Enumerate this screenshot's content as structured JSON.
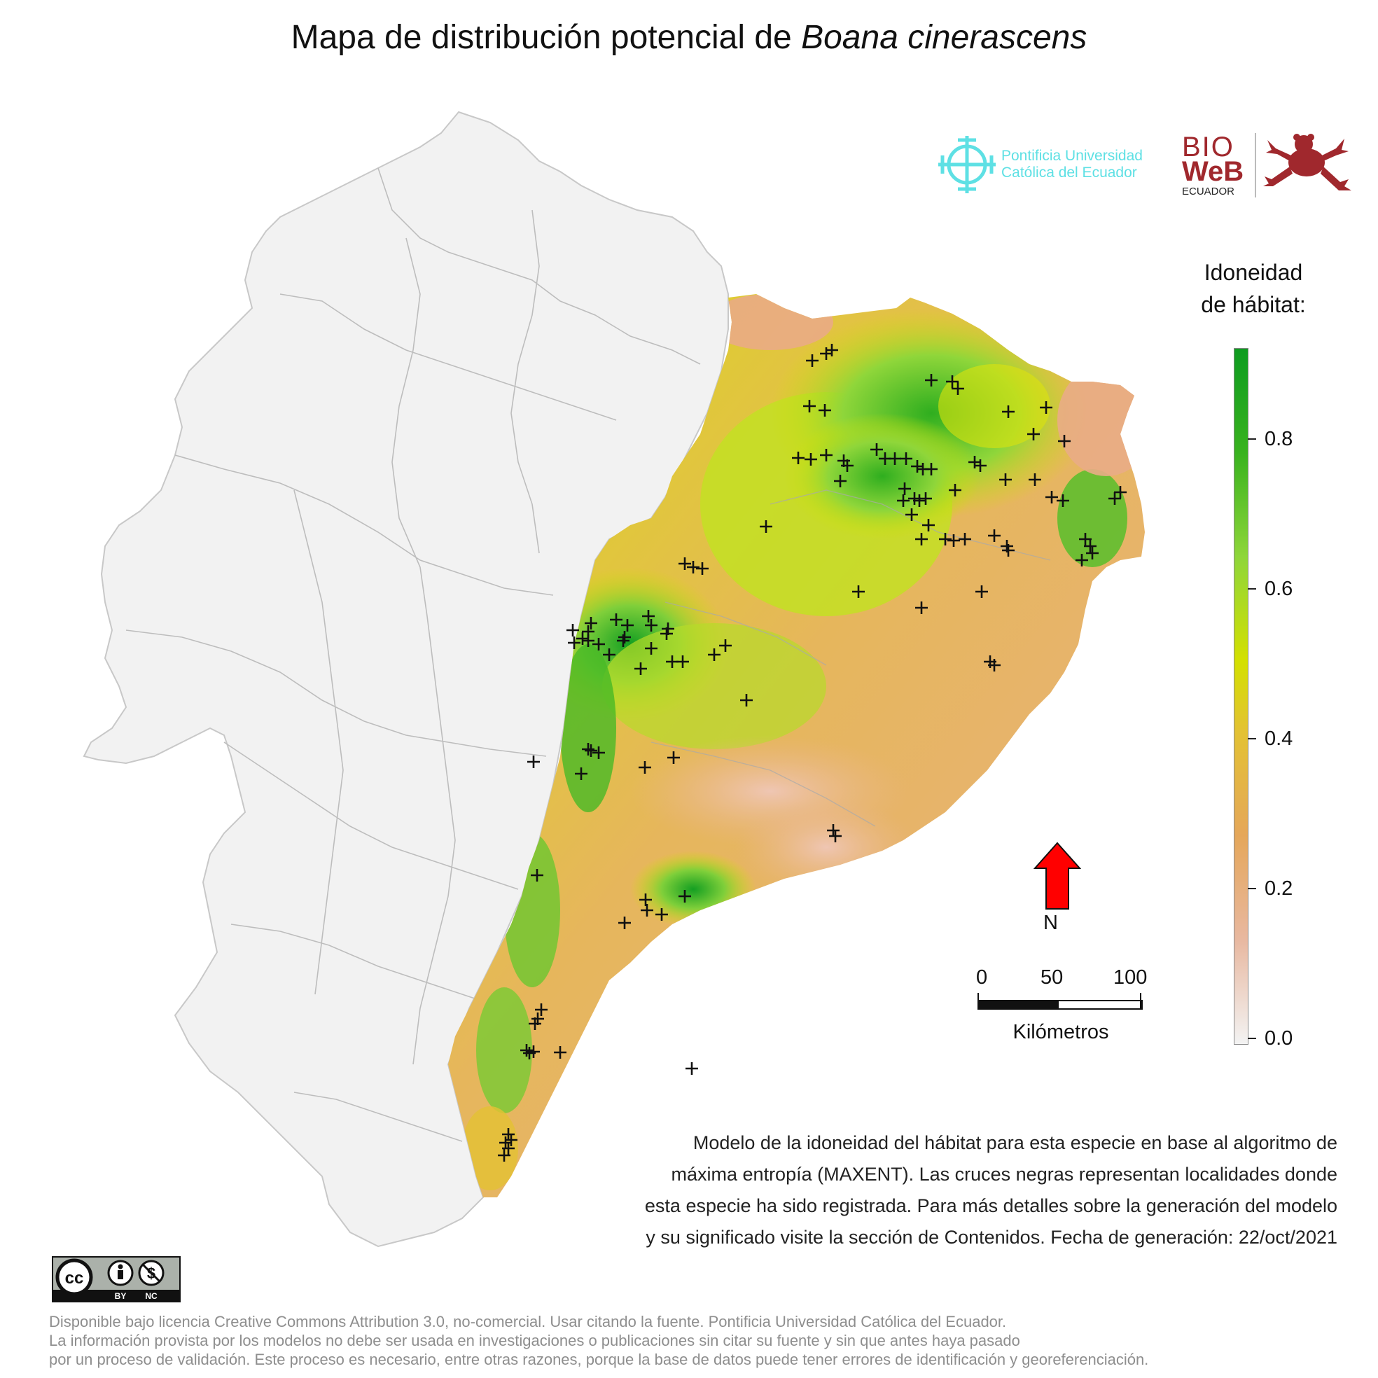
{
  "title": {
    "prefix": "Mapa de distribución potencial de ",
    "species": "Boana cinerascens"
  },
  "logos": {
    "puce_line1": "Pontificia Universidad",
    "puce_line2": "Católica del Ecuador",
    "bioweb_line1": "BIO",
    "bioweb_line2": "WeB",
    "bioweb_line3": "ECUADOR",
    "puce_color": "#5ee0e4",
    "bioweb_color": "#a0282d"
  },
  "legend": {
    "title_line1": "Idoneidad",
    "title_line2": "de hábitat:",
    "ticks": [
      "0.8",
      "0.6",
      "0.4",
      "0.2",
      "0.0"
    ],
    "low_color": "#f3f3f3",
    "mid_color": "#e3c233",
    "high_color": "#0e9c20"
  },
  "north": {
    "label": "N",
    "arrow_color": "#ff0000"
  },
  "scale_bar": {
    "labels": [
      "0",
      "50",
      "100"
    ],
    "unit": "Kilómetros"
  },
  "description": {
    "line1": "Modelo de la idoneidad del hábitat para esta especie en base al algoritmo de",
    "line2": "máxima entropía (MAXENT). Las cruces negras representan localidades donde",
    "line3": "esta especie ha sido registrada. Para más detalles sobre la generación del modelo",
    "line4": "y su significado visite la sección de Contenidos. Fecha de generación: 22/oct/2021"
  },
  "license_badge": {
    "cc": "cc",
    "by": "BY",
    "nc": "NC"
  },
  "footer": {
    "line1": "Disponible bajo licencia Creative Commons Attribution 3.0, no-comercial. Usar citando la fuente. Pontificia Universidad Católica del Ecuador.",
    "line2": "La información provista por los modelos no debe ser usada en investigaciones o publicaciones sin citar su fuente y sin que antes haya pasado",
    "line3": "por un proceso de validación. Este proceso es necesario, entre otras razones, porque la base de datos puede tener errores de identificación y georeferenciación."
  }
}
